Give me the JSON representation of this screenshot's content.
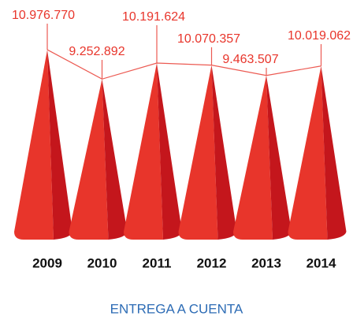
{
  "chart_data": {
    "type": "cone",
    "title": "ENTREGA A CUENTA",
    "categories": [
      "2009",
      "2010",
      "2011",
      "2012",
      "2013",
      "2014"
    ],
    "values": [
      10976770,
      9252892,
      10191624,
      10070357,
      9463507,
      10019062
    ],
    "value_labels": [
      "10.976.770",
      "9.252.892",
      "10.191.624",
      "10.070.357",
      "9.463.507",
      "10.019.062"
    ],
    "color": "#e8352b",
    "side_color": "#c4161c",
    "line_color": "#ec5a52",
    "ylim": [
      0,
      12000000
    ]
  }
}
